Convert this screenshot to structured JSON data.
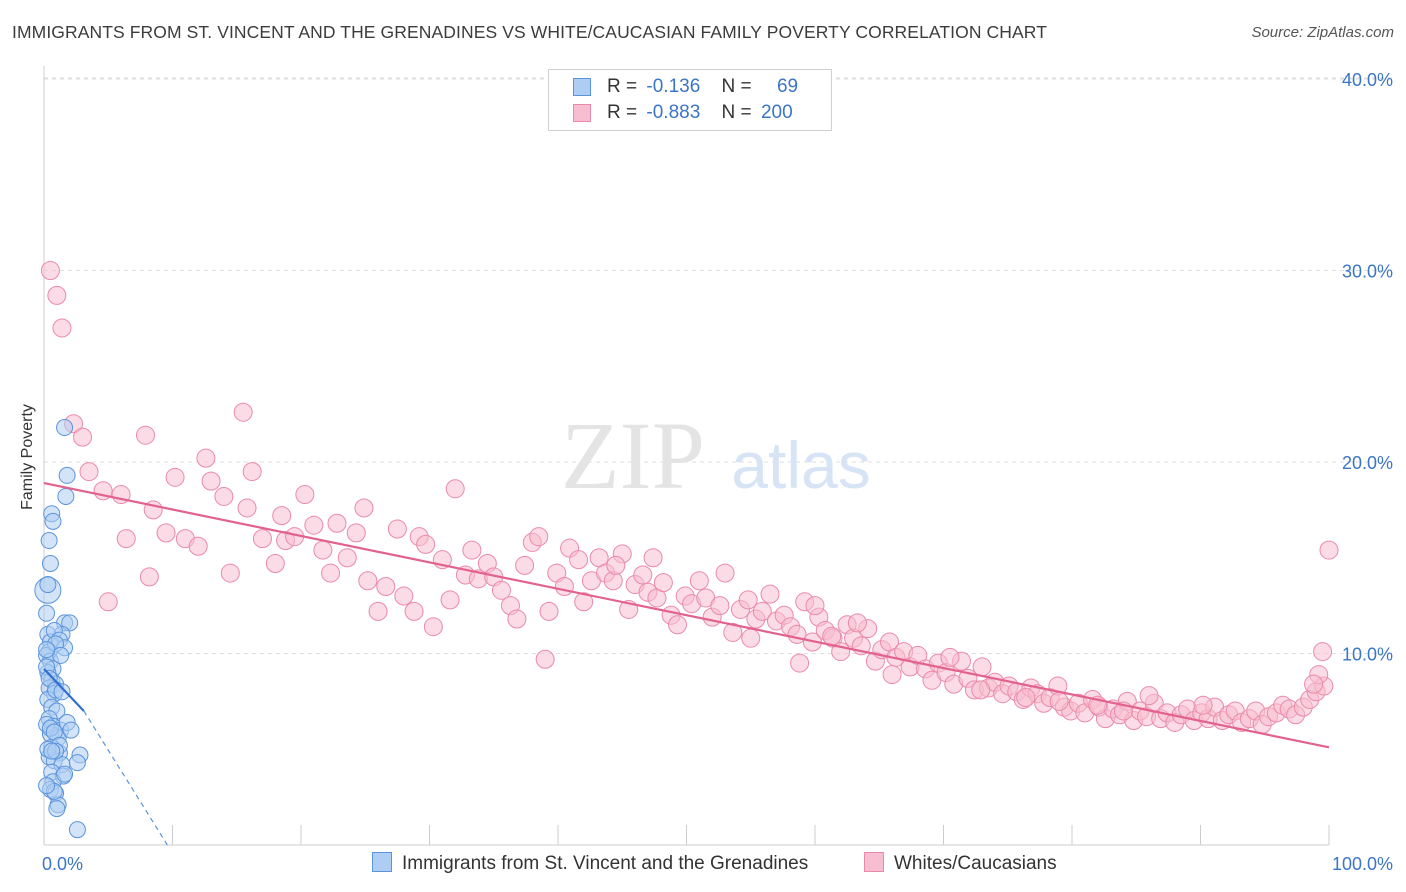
{
  "title": "IMMIGRANTS FROM ST. VINCENT AND THE GRENADINES VS WHITE/CAUCASIAN FAMILY POVERTY CORRELATION CHART",
  "source": "Source: ZipAtlas.com",
  "watermark": {
    "zip": "ZIP",
    "atlas": "atlas"
  },
  "legend": {
    "series1": {
      "r_label": "R =",
      "r_value": "-0.136",
      "n_label": "N =",
      "n_value": "69"
    },
    "series2": {
      "r_label": "R =",
      "r_value": "-0.883",
      "n_label": "N =",
      "n_value": "200"
    }
  },
  "colors": {
    "blue_fill": "#aecdf3",
    "blue_stroke": "#5b94dc",
    "blue_line": "#2f6fd0",
    "pink_fill": "#f7bdd0",
    "pink_stroke": "#ea8aaa",
    "pink_line": "#e2628e",
    "tick_text": "#3b75c7"
  },
  "chart_data": {
    "type": "scatter",
    "title": "IMMIGRANTS FROM ST. VINCENT AND THE GRENADINES VS WHITE/CAUCASIAN FAMILY POVERTY CORRELATION CHART",
    "xlabel": "",
    "ylabel": "Family Poverty",
    "xlim": [
      0,
      100
    ],
    "ylim": [
      0,
      42
    ],
    "x_tick_labels": [
      "0.0%",
      "100.0%"
    ],
    "y_tick_labels": [
      "10.0%",
      "20.0%",
      "30.0%",
      "40.0%"
    ],
    "y_ticks": [
      10,
      20,
      30,
      40
    ],
    "grid": "horizontal dashed",
    "legend_position": "top-center",
    "series": [
      {
        "name": "Immigrants from St. Vincent and the Grenadines",
        "color": "#aecdf3",
        "points": [
          [
            0.3,
            13.3
          ],
          [
            0.2,
            12.1
          ],
          [
            0.3,
            11.0
          ],
          [
            0.5,
            10.6
          ],
          [
            0.4,
            10.1
          ],
          [
            0.2,
            9.9
          ],
          [
            0.5,
            9.6
          ],
          [
            0.7,
            9.2
          ],
          [
            0.3,
            9.0
          ],
          [
            0.6,
            8.6
          ],
          [
            0.9,
            8.4
          ],
          [
            0.4,
            8.2
          ],
          [
            0.8,
            7.9
          ],
          [
            0.3,
            7.6
          ],
          [
            0.6,
            7.2
          ],
          [
            1.0,
            7.0
          ],
          [
            0.4,
            6.6
          ],
          [
            0.7,
            6.2
          ],
          [
            1.3,
            6.0
          ],
          [
            0.5,
            5.8
          ],
          [
            1.1,
            5.6
          ],
          [
            0.6,
            5.1
          ],
          [
            1.2,
            4.8
          ],
          [
            0.4,
            4.6
          ],
          [
            0.8,
            4.4
          ],
          [
            1.4,
            4.2
          ],
          [
            0.6,
            3.8
          ],
          [
            1.5,
            3.6
          ],
          [
            0.7,
            3.3
          ],
          [
            0.5,
            2.9
          ],
          [
            0.9,
            2.7
          ],
          [
            1.1,
            2.1
          ],
          [
            2.6,
            0.8
          ],
          [
            1.6,
            21.8
          ],
          [
            1.8,
            19.3
          ],
          [
            1.7,
            18.2
          ],
          [
            0.6,
            17.3
          ],
          [
            0.7,
            16.9
          ],
          [
            0.4,
            15.9
          ],
          [
            0.5,
            14.7
          ],
          [
            0.3,
            13.6
          ],
          [
            1.6,
            11.6
          ],
          [
            2.0,
            11.6
          ],
          [
            1.4,
            11.0
          ],
          [
            0.8,
            11.2
          ],
          [
            1.2,
            10.7
          ],
          [
            1.6,
            10.3
          ],
          [
            0.9,
            10.5
          ],
          [
            1.3,
            9.9
          ],
          [
            0.2,
            10.2
          ],
          [
            0.2,
            9.3
          ],
          [
            0.4,
            8.7
          ],
          [
            0.9,
            8.1
          ],
          [
            1.4,
            8.0
          ],
          [
            0.2,
            6.3
          ],
          [
            0.5,
            6.1
          ],
          [
            1.8,
            6.4
          ],
          [
            2.1,
            6.0
          ],
          [
            0.8,
            5.9
          ],
          [
            1.2,
            5.2
          ],
          [
            0.3,
            5.0
          ],
          [
            2.8,
            4.7
          ],
          [
            0.9,
            4.9
          ],
          [
            2.6,
            4.3
          ],
          [
            0.6,
            4.9
          ],
          [
            1.6,
            3.7
          ],
          [
            0.8,
            2.8
          ],
          [
            0.2,
            3.1
          ],
          [
            1.0,
            1.9
          ]
        ],
        "trend": {
          "x": [
            0,
            3.1
          ],
          "y": [
            9.2,
            7.0
          ]
        },
        "trend_extension": {
          "x": [
            3.1,
            9.6
          ],
          "y": [
            7.0,
            0
          ]
        }
      },
      {
        "name": "Whites/Caucasians",
        "color": "#f7bdd0",
        "points": [
          [
            0.5,
            30.0
          ],
          [
            1.0,
            28.7
          ],
          [
            1.4,
            27.0
          ],
          [
            2.3,
            22.0
          ],
          [
            3.0,
            21.3
          ],
          [
            4.6,
            18.5
          ],
          [
            3.5,
            19.5
          ],
          [
            6.0,
            18.3
          ],
          [
            5.0,
            12.7
          ],
          [
            6.4,
            16.0
          ],
          [
            8.2,
            14.0
          ],
          [
            7.9,
            21.4
          ],
          [
            8.5,
            17.5
          ],
          [
            9.5,
            16.3
          ],
          [
            10.2,
            19.2
          ],
          [
            11.0,
            16.0
          ],
          [
            12.0,
            15.6
          ],
          [
            12.6,
            20.2
          ],
          [
            13.0,
            19.0
          ],
          [
            14.0,
            18.2
          ],
          [
            14.5,
            14.2
          ],
          [
            15.5,
            22.6
          ],
          [
            15.8,
            17.6
          ],
          [
            16.2,
            19.5
          ],
          [
            17.0,
            16.0
          ],
          [
            18.0,
            14.7
          ],
          [
            18.5,
            17.2
          ],
          [
            18.8,
            15.9
          ],
          [
            19.5,
            16.1
          ],
          [
            20.3,
            18.3
          ],
          [
            21.0,
            16.7
          ],
          [
            21.7,
            15.4
          ],
          [
            22.3,
            14.2
          ],
          [
            22.8,
            16.8
          ],
          [
            23.6,
            15.0
          ],
          [
            24.3,
            16.3
          ],
          [
            24.9,
            17.6
          ],
          [
            25.2,
            13.8
          ],
          [
            26.0,
            12.2
          ],
          [
            26.6,
            13.5
          ],
          [
            27.5,
            16.5
          ],
          [
            28.0,
            13.0
          ],
          [
            28.8,
            12.2
          ],
          [
            29.2,
            16.1
          ],
          [
            29.7,
            15.7
          ],
          [
            30.3,
            11.4
          ],
          [
            31.0,
            14.9
          ],
          [
            31.6,
            12.8
          ],
          [
            32.0,
            18.6
          ],
          [
            32.8,
            14.1
          ],
          [
            33.3,
            15.4
          ],
          [
            33.8,
            13.9
          ],
          [
            34.5,
            14.7
          ],
          [
            35.0,
            14.0
          ],
          [
            35.6,
            13.3
          ],
          [
            36.3,
            12.5
          ],
          [
            36.8,
            11.8
          ],
          [
            37.4,
            14.6
          ],
          [
            38.0,
            15.8
          ],
          [
            38.5,
            16.1
          ],
          [
            39.0,
            9.7
          ],
          [
            39.3,
            12.2
          ],
          [
            39.9,
            14.2
          ],
          [
            40.5,
            13.5
          ],
          [
            40.9,
            15.5
          ],
          [
            41.6,
            14.9
          ],
          [
            42.0,
            12.7
          ],
          [
            42.6,
            13.8
          ],
          [
            43.2,
            15.0
          ],
          [
            43.7,
            14.2
          ],
          [
            44.3,
            13.8
          ],
          [
            45.0,
            15.2
          ],
          [
            45.5,
            12.3
          ],
          [
            46.0,
            13.6
          ],
          [
            46.6,
            14.1
          ],
          [
            47.0,
            13.2
          ],
          [
            47.7,
            12.9
          ],
          [
            48.2,
            13.7
          ],
          [
            48.8,
            12.0
          ],
          [
            49.3,
            11.5
          ],
          [
            49.9,
            13.0
          ],
          [
            50.4,
            12.6
          ],
          [
            51.0,
            13.8
          ],
          [
            51.5,
            12.9
          ],
          [
            52.0,
            11.9
          ],
          [
            52.6,
            12.5
          ],
          [
            53.0,
            14.2
          ],
          [
            53.6,
            11.1
          ],
          [
            54.2,
            12.3
          ],
          [
            54.8,
            12.8
          ],
          [
            55.4,
            11.8
          ],
          [
            55.9,
            12.2
          ],
          [
            56.5,
            13.1
          ],
          [
            57.0,
            11.7
          ],
          [
            57.6,
            12.0
          ],
          [
            58.1,
            11.4
          ],
          [
            58.6,
            11.0
          ],
          [
            59.2,
            12.7
          ],
          [
            59.8,
            10.6
          ],
          [
            60.3,
            11.9
          ],
          [
            60.8,
            11.2
          ],
          [
            61.4,
            10.8
          ],
          [
            62.0,
            10.1
          ],
          [
            62.5,
            11.5
          ],
          [
            63.0,
            10.8
          ],
          [
            63.6,
            10.4
          ],
          [
            64.1,
            11.3
          ],
          [
            64.7,
            9.6
          ],
          [
            65.2,
            10.2
          ],
          [
            65.8,
            10.6
          ],
          [
            66.3,
            9.8
          ],
          [
            66.9,
            10.1
          ],
          [
            67.4,
            9.3
          ],
          [
            68.0,
            9.9
          ],
          [
            68.6,
            9.2
          ],
          [
            69.1,
            8.6
          ],
          [
            69.6,
            9.5
          ],
          [
            70.2,
            9.0
          ],
          [
            70.8,
            8.4
          ],
          [
            71.4,
            9.6
          ],
          [
            71.9,
            8.7
          ],
          [
            72.4,
            8.1
          ],
          [
            73.0,
            9.3
          ],
          [
            73.5,
            8.2
          ],
          [
            74.0,
            8.5
          ],
          [
            74.6,
            7.9
          ],
          [
            75.1,
            8.3
          ],
          [
            75.7,
            8.0
          ],
          [
            76.2,
            7.6
          ],
          [
            76.8,
            8.2
          ],
          [
            77.3,
            7.9
          ],
          [
            77.8,
            7.4
          ],
          [
            78.3,
            7.7
          ],
          [
            78.9,
            8.3
          ],
          [
            79.4,
            7.2
          ],
          [
            79.9,
            7.0
          ],
          [
            80.5,
            7.4
          ],
          [
            81.0,
            6.9
          ],
          [
            81.6,
            7.6
          ],
          [
            82.1,
            7.2
          ],
          [
            82.6,
            6.6
          ],
          [
            83.2,
            7.1
          ],
          [
            83.7,
            6.8
          ],
          [
            84.3,
            7.5
          ],
          [
            84.8,
            6.5
          ],
          [
            85.3,
            7.0
          ],
          [
            85.8,
            6.7
          ],
          [
            86.4,
            7.4
          ],
          [
            86.9,
            6.6
          ],
          [
            87.4,
            6.9
          ],
          [
            88.0,
            6.4
          ],
          [
            88.5,
            6.8
          ],
          [
            89.0,
            7.1
          ],
          [
            89.5,
            6.5
          ],
          [
            90.1,
            6.9
          ],
          [
            90.6,
            6.6
          ],
          [
            91.1,
            7.2
          ],
          [
            91.7,
            6.5
          ],
          [
            92.2,
            6.8
          ],
          [
            92.7,
            7.0
          ],
          [
            93.2,
            6.4
          ],
          [
            93.8,
            6.6
          ],
          [
            94.3,
            7.0
          ],
          [
            94.8,
            6.3
          ],
          [
            95.3,
            6.7
          ],
          [
            95.9,
            6.9
          ],
          [
            96.4,
            7.3
          ],
          [
            96.9,
            7.1
          ],
          [
            97.4,
            6.8
          ],
          [
            98.0,
            7.2
          ],
          [
            98.5,
            7.6
          ],
          [
            99.0,
            8.0
          ],
          [
            99.6,
            8.3
          ],
          [
            100.0,
            15.4
          ],
          [
            99.5,
            10.1
          ],
          [
            99.2,
            8.9
          ],
          [
            98.8,
            8.4
          ],
          [
            58.8,
            9.5
          ],
          [
            66.0,
            8.9
          ],
          [
            72.9,
            8.1
          ],
          [
            76.4,
            7.7
          ],
          [
            82.0,
            7.3
          ],
          [
            86.0,
            7.8
          ],
          [
            90.2,
            7.3
          ],
          [
            61.3,
            10.9
          ],
          [
            55.0,
            10.8
          ],
          [
            47.4,
            15.0
          ],
          [
            44.5,
            14.6
          ],
          [
            60.0,
            12.5
          ],
          [
            63.3,
            11.6
          ],
          [
            70.5,
            9.8
          ],
          [
            79.0,
            7.5
          ],
          [
            84.0,
            7.0
          ]
        ],
        "trend": {
          "x": [
            0,
            100
          ],
          "y": [
            18.9,
            5.1
          ]
        }
      }
    ]
  },
  "bottom_legend": {
    "items": [
      {
        "label": "Immigrants from St. Vincent and the Grenadines"
      },
      {
        "label": "Whites/Caucasians"
      }
    ]
  }
}
